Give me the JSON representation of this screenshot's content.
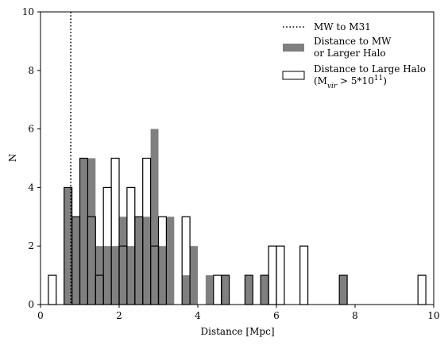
{
  "chart_data": {
    "type": "bar",
    "title": "",
    "xlabel": "Distance [Mpc]",
    "ylabel": "N",
    "xlim": [
      0,
      10
    ],
    "ylim": [
      0,
      10
    ],
    "xticks": [
      0,
      2,
      4,
      6,
      8,
      10
    ],
    "yticks": [
      0,
      2,
      4,
      6,
      8,
      10
    ],
    "bin_width": 0.2,
    "grid": false,
    "legend_position": "top-right",
    "vline": {
      "x": 0.77,
      "name": "MW to M31",
      "style": "dotted",
      "color": "#000000"
    },
    "series": [
      {
        "name": "Distance to MW\nor Larger Halo",
        "style": "filled",
        "color": "#808080",
        "bins": [
          {
            "x0": 0.6,
            "count": 4
          },
          {
            "x0": 0.8,
            "count": 3
          },
          {
            "x0": 1.0,
            "count": 5
          },
          {
            "x0": 1.2,
            "count": 5
          },
          {
            "x0": 1.4,
            "count": 2
          },
          {
            "x0": 1.6,
            "count": 2
          },
          {
            "x0": 1.8,
            "count": 2
          },
          {
            "x0": 2.0,
            "count": 3
          },
          {
            "x0": 2.2,
            "count": 2
          },
          {
            "x0": 2.4,
            "count": 3
          },
          {
            "x0": 2.6,
            "count": 3
          },
          {
            "x0": 2.8,
            "count": 6
          },
          {
            "x0": 3.0,
            "count": 2
          },
          {
            "x0": 3.2,
            "count": 3
          },
          {
            "x0": 3.6,
            "count": 1
          },
          {
            "x0": 3.8,
            "count": 2
          },
          {
            "x0": 4.2,
            "count": 1
          },
          {
            "x0": 4.6,
            "count": 1
          },
          {
            "x0": 5.2,
            "count": 1
          },
          {
            "x0": 5.6,
            "count": 1
          },
          {
            "x0": 7.6,
            "count": 1
          }
        ]
      },
      {
        "name": "Distance to Large Halo\n(M_vir > 5*10^11)",
        "style": "outline",
        "color": "#000000",
        "bins": [
          {
            "x0": 0.2,
            "count": 1
          },
          {
            "x0": 0.6,
            "count": 4
          },
          {
            "x0": 0.8,
            "count": 3
          },
          {
            "x0": 1.0,
            "count": 5
          },
          {
            "x0": 1.2,
            "count": 3
          },
          {
            "x0": 1.4,
            "count": 1
          },
          {
            "x0": 1.6,
            "count": 4
          },
          {
            "x0": 1.8,
            "count": 5
          },
          {
            "x0": 2.0,
            "count": 2
          },
          {
            "x0": 2.2,
            "count": 4
          },
          {
            "x0": 2.4,
            "count": 3
          },
          {
            "x0": 2.6,
            "count": 5
          },
          {
            "x0": 2.8,
            "count": 2
          },
          {
            "x0": 3.0,
            "count": 3
          },
          {
            "x0": 3.6,
            "count": 3
          },
          {
            "x0": 4.4,
            "count": 1
          },
          {
            "x0": 4.6,
            "count": 1
          },
          {
            "x0": 5.2,
            "count": 1
          },
          {
            "x0": 5.6,
            "count": 1
          },
          {
            "x0": 5.8,
            "count": 2
          },
          {
            "x0": 6.0,
            "count": 2
          },
          {
            "x0": 6.6,
            "count": 2
          },
          {
            "x0": 7.6,
            "count": 1
          },
          {
            "x0": 9.6,
            "count": 1
          }
        ]
      }
    ]
  }
}
